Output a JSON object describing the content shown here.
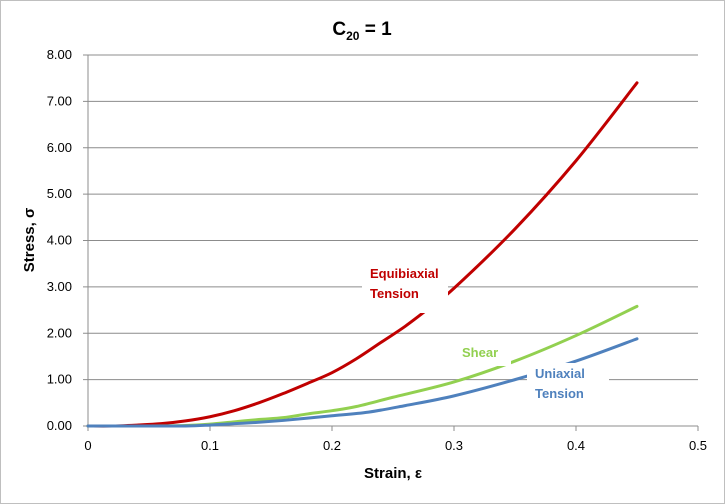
{
  "chart_data": {
    "type": "line",
    "title": {
      "base": "C",
      "sub": "20",
      "rest": " = 1"
    },
    "xlabel": "Strain, ε",
    "ylabel": "Stress, σ",
    "xlim": [
      0,
      0.5
    ],
    "ylim": [
      0,
      8
    ],
    "x_ticks": [
      "0",
      "0.1",
      "0.2",
      "0.3",
      "0.4",
      "0.5"
    ],
    "y_ticks": [
      "0.00",
      "1.00",
      "2.00",
      "3.00",
      "4.00",
      "5.00",
      "6.00",
      "7.00",
      "8.00"
    ],
    "grid": "horizontal",
    "legend": "none",
    "series": [
      {
        "name": "Equibiaxial Tension",
        "label_lines": [
          "Equibiaxial",
          "Tension"
        ],
        "color": "#c00000",
        "x": [
          0,
          0.02,
          0.04,
          0.06,
          0.08,
          0.1,
          0.12,
          0.14,
          0.16,
          0.18,
          0.2,
          0.22,
          0.24,
          0.26,
          0.28,
          0.3,
          0.35,
          0.4,
          0.45
        ],
        "y": [
          0,
          0.0,
          0.02,
          0.05,
          0.11,
          0.2,
          0.33,
          0.5,
          0.7,
          0.92,
          1.15,
          1.45,
          1.8,
          2.15,
          2.55,
          2.97,
          4.25,
          5.72,
          7.4
        ]
      },
      {
        "name": "Shear",
        "label_lines": [
          "Shear"
        ],
        "color": "#92d050",
        "x": [
          0,
          0.05,
          0.08,
          0.1,
          0.12,
          0.14,
          0.16,
          0.18,
          0.2,
          0.22,
          0.25,
          0.3,
          0.35,
          0.4,
          0.45
        ],
        "y": [
          0,
          0.0,
          0.01,
          0.04,
          0.09,
          0.14,
          0.18,
          0.26,
          0.33,
          0.42,
          0.62,
          0.95,
          1.4,
          1.95,
          2.58
        ]
      },
      {
        "name": "Uniaxial Tension",
        "label_lines": [
          "Uniaxial",
          "Tension"
        ],
        "color": "#4f81bd",
        "x": [
          0,
          0.05,
          0.08,
          0.1,
          0.12,
          0.14,
          0.16,
          0.18,
          0.2,
          0.23,
          0.26,
          0.3,
          0.35,
          0.4,
          0.45
        ],
        "y": [
          0,
          0.0,
          0.0,
          0.02,
          0.05,
          0.08,
          0.12,
          0.17,
          0.22,
          0.3,
          0.44,
          0.65,
          1.0,
          1.4,
          1.88
        ]
      }
    ]
  }
}
